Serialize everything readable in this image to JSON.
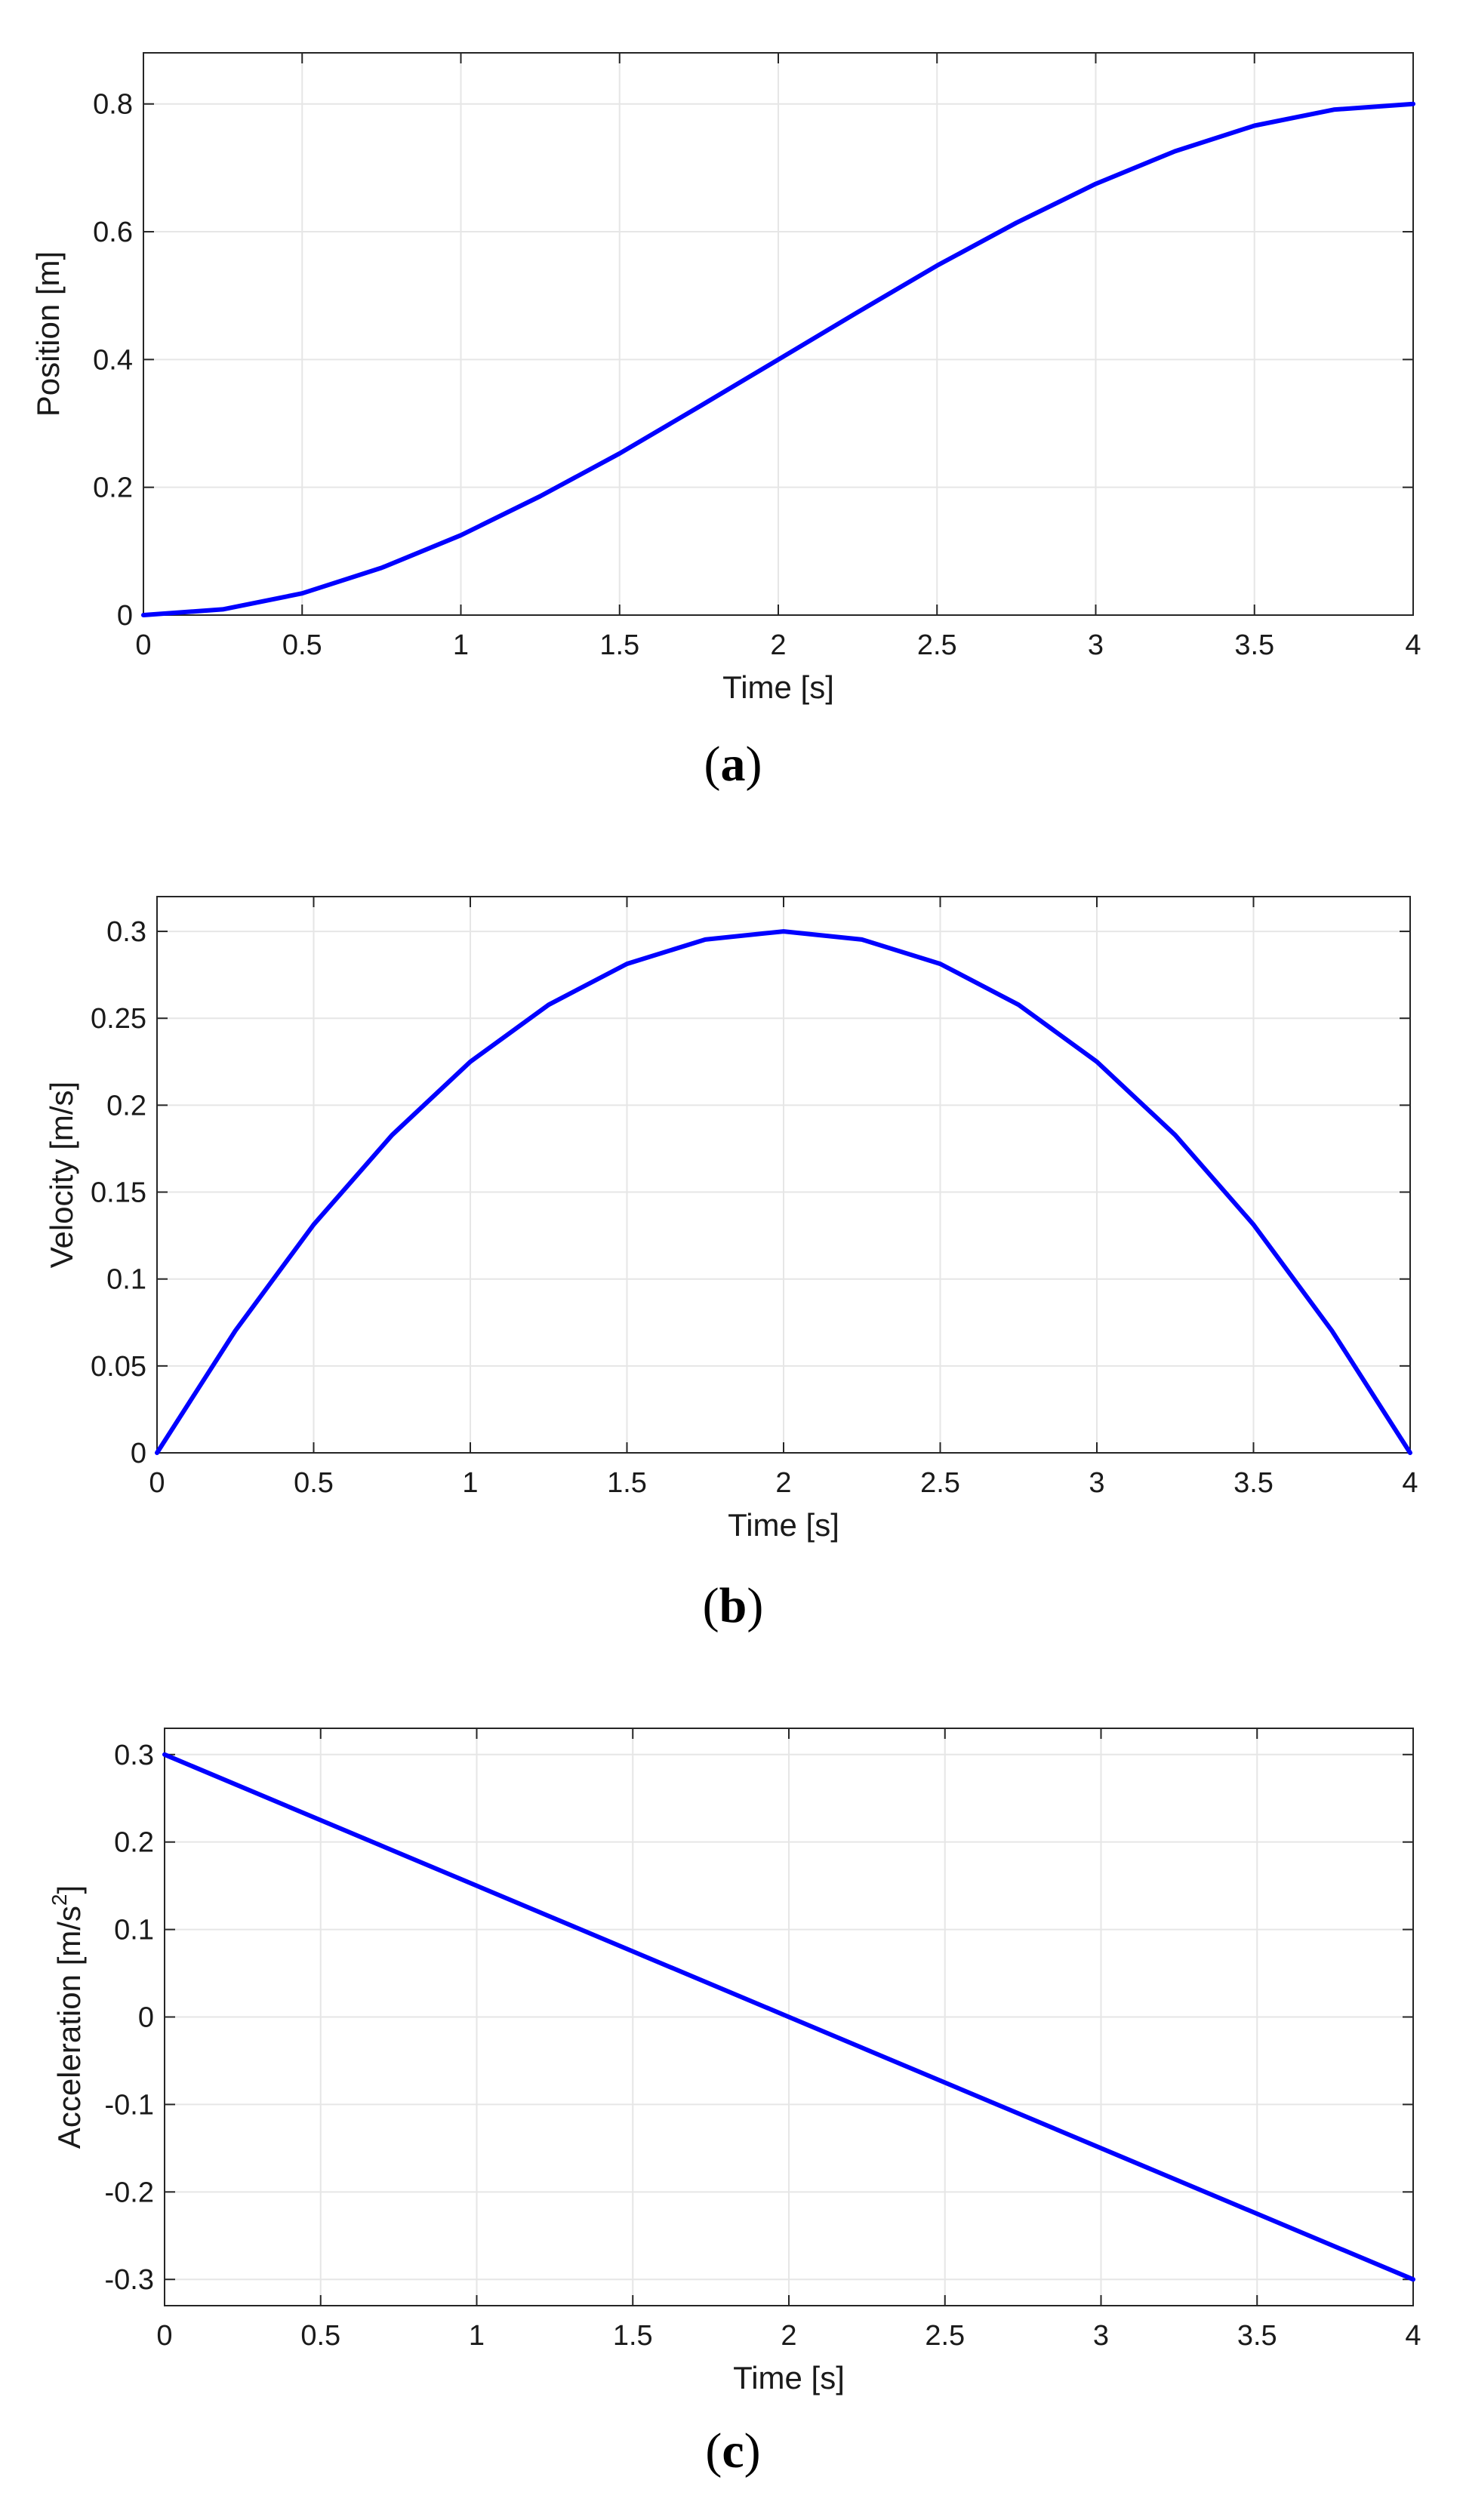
{
  "chart_data": [
    {
      "type": "line",
      "caption": "a",
      "xlabel": "Time [s]",
      "ylabel": "Position [m]",
      "xlim": [
        0,
        4
      ],
      "ylim": [
        0,
        0.88
      ],
      "x_ticks": [
        0,
        0.5,
        1,
        1.5,
        2,
        2.5,
        3,
        3.5,
        4
      ],
      "x_tick_labels": [
        "0",
        "0.5",
        "1",
        "1.5",
        "2",
        "2.5",
        "3",
        "3.5",
        "4"
      ],
      "y_ticks": [
        0,
        0.2,
        0.4,
        0.6,
        0.8
      ],
      "y_tick_labels": [
        "0",
        "0.2",
        "0.4",
        "0.6",
        "0.8"
      ],
      "grid": true,
      "series": [
        {
          "color": "#0000ff",
          "x": [
            0,
            0.25,
            0.5,
            0.75,
            1,
            1.25,
            1.5,
            1.75,
            2,
            2.25,
            2.5,
            2.75,
            3,
            3.25,
            3.5,
            3.75,
            4
          ],
          "y": [
            0,
            0.009,
            0.034,
            0.074,
            0.125,
            0.186,
            0.253,
            0.326,
            0.4,
            0.474,
            0.547,
            0.614,
            0.675,
            0.726,
            0.766,
            0.791,
            0.8
          ]
        }
      ]
    },
    {
      "type": "line",
      "caption": "b",
      "xlabel": "Time [s]",
      "ylabel": "Velocity [m/s]",
      "xlim": [
        0,
        4
      ],
      "ylim": [
        0,
        0.32
      ],
      "x_ticks": [
        0,
        0.5,
        1,
        1.5,
        2,
        2.5,
        3,
        3.5,
        4
      ],
      "x_tick_labels": [
        "0",
        "0.5",
        "1",
        "1.5",
        "2",
        "2.5",
        "3",
        "3.5",
        "4"
      ],
      "y_ticks": [
        0,
        0.05,
        0.1,
        0.15,
        0.2,
        0.25,
        0.3
      ],
      "y_tick_labels": [
        "0",
        "0.05",
        "0.1",
        "0.15",
        "0.2",
        "0.25",
        "0.3"
      ],
      "grid": true,
      "series": [
        {
          "color": "#0000ff",
          "x": [
            0,
            0.25,
            0.5,
            0.75,
            1,
            1.25,
            1.5,
            1.75,
            2,
            2.25,
            2.5,
            2.75,
            3,
            3.25,
            3.5,
            3.75,
            4
          ],
          "y": [
            0,
            0.0703,
            0.1313,
            0.1828,
            0.225,
            0.2578,
            0.2813,
            0.2953,
            0.3,
            0.2953,
            0.2813,
            0.2578,
            0.225,
            0.1828,
            0.1313,
            0.0703,
            0
          ]
        }
      ]
    },
    {
      "type": "line",
      "caption": "c",
      "xlabel": "Time [s]",
      "ylabel": "Acceleration [m/s",
      "ylabel_sup": "2",
      "ylabel_end": "]",
      "xlim": [
        0,
        4
      ],
      "ylim": [
        -0.33,
        0.33
      ],
      "x_ticks": [
        0,
        0.5,
        1,
        1.5,
        2,
        2.5,
        3,
        3.5,
        4
      ],
      "x_tick_labels": [
        "0",
        "0.5",
        "1",
        "1.5",
        "2",
        "2.5",
        "3",
        "3.5",
        "4"
      ],
      "y_ticks": [
        -0.3,
        -0.2,
        -0.1,
        0,
        0.1,
        0.2,
        0.3
      ],
      "y_tick_labels": [
        "-0.3",
        "-0.2",
        "-0.1",
        "0",
        "0.1",
        "0.2",
        "0.3"
      ],
      "grid": true,
      "series": [
        {
          "color": "#0000ff",
          "x": [
            0,
            4
          ],
          "y": [
            0.3,
            -0.3
          ]
        }
      ]
    }
  ]
}
